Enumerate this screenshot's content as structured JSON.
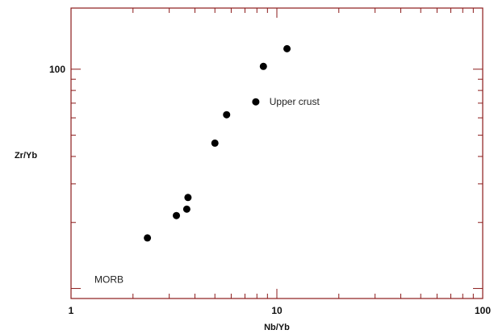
{
  "chart_data": {
    "type": "scatter",
    "xlabel": "Nb/Yb",
    "ylabel": "Zr/Yb",
    "xscale": "log",
    "yscale": "log",
    "xlim": [
      1,
      100
    ],
    "ylim": [
      9,
      190
    ],
    "x_tick_labels": [
      "1",
      "10",
      "100"
    ],
    "y_tick_labels": [
      "100"
    ],
    "grid": false,
    "frame_color": "#8b1a1a",
    "point_color": "#000000",
    "points": [
      {
        "x": 2.35,
        "y": 17.0
      },
      {
        "x": 3.25,
        "y": 21.5
      },
      {
        "x": 3.65,
        "y": 23.0
      },
      {
        "x": 3.7,
        "y": 26.0
      },
      {
        "x": 5.0,
        "y": 46.0
      },
      {
        "x": 5.7,
        "y": 62.0
      },
      {
        "x": 7.9,
        "y": 71.0
      },
      {
        "x": 8.6,
        "y": 103.0
      },
      {
        "x": 11.2,
        "y": 124.0
      }
    ],
    "annotations": [
      {
        "text": "Upper crust",
        "x": 9.2,
        "y": 71.0
      },
      {
        "text": "MORB",
        "x": 1.3,
        "y": 11.0
      }
    ]
  }
}
